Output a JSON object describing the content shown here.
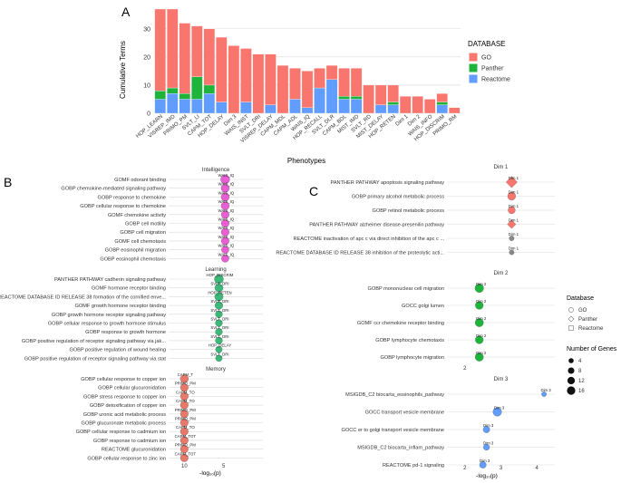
{
  "colors": {
    "GO": "#F8766D",
    "Panther": "#1EB43C",
    "Reactome": "#619CFF",
    "intel": "#E75FD3",
    "learn": "#3CB878",
    "mem": "#E8786A",
    "grid": "#d9d9d9",
    "axis": "#333333"
  },
  "panels": {
    "A": {
      "letter": "A",
      "ylabel": "Cumulative Terms",
      "xlabel": "Phenotypes",
      "legend": {
        "title": "DATABASE",
        "items": [
          "GO",
          "Panther",
          "Reactome"
        ]
      }
    },
    "B": {
      "letter": "B",
      "xlabel": "-log₁₀(p)"
    },
    "C": {
      "letter": "C",
      "xlabel": "-log₁₀(p)",
      "db_legend": {
        "title": "Database",
        "items": [
          "GO",
          "Panther",
          "Reactome"
        ]
      },
      "size_legend": {
        "title": "Number of Genes",
        "values": [
          "4",
          "8",
          "12",
          "16"
        ]
      }
    }
  },
  "chart_data": [
    {
      "type": "bar",
      "stacked": true,
      "title": "",
      "xlabel": "Phenotypes",
      "ylabel": "Cumulative Terms",
      "ylim": [
        0,
        37
      ],
      "yticks": [
        0,
        10,
        20,
        30
      ],
      "categories": [
        "HOP_LEARN",
        "VISREP_IMD",
        "PRIMO_PM",
        "SVLT_LI",
        "CAPM_TOT",
        "HOP_DELAY",
        "Dim 3",
        "WAIS_INST",
        "SVLT_DRI",
        "VISREP_DELAY",
        "CAPM_MDL",
        "CAPM_ADL",
        "WAIS_IQ",
        "HOP_RECALL",
        "SVLT_DLR",
        "CAPM_BDL",
        "MIST_IMD",
        "SVLT_RD",
        "MIST_DELAY",
        "HOP_RETEN",
        "Dim 1",
        "Dim 2",
        "WAIS_INFO",
        "HOP_DISCRIM",
        "PRIMO_RM"
      ],
      "series": [
        {
          "name": "GO",
          "values": [
            29,
            28,
            25,
            18,
            20,
            23,
            24,
            19,
            21,
            18,
            17,
            11,
            13,
            7,
            5,
            10,
            10,
            10,
            7,
            6,
            6,
            6,
            5,
            3,
            2
          ]
        },
        {
          "name": "Panther",
          "values": [
            3,
            2,
            2,
            8,
            3,
            0,
            0,
            0,
            0,
            0,
            0,
            0,
            0,
            0,
            0,
            1,
            1,
            0,
            0,
            1,
            0,
            0,
            0,
            1,
            0
          ]
        },
        {
          "name": "Reactome",
          "values": [
            5,
            7,
            5,
            5,
            7,
            4,
            0,
            4,
            0,
            3,
            0,
            5,
            2,
            9,
            12,
            5,
            5,
            0,
            3,
            3,
            0,
            0,
            0,
            3,
            0
          ]
        }
      ]
    },
    {
      "type": "scatter",
      "panel": "B",
      "xlabel": "-log10(p)",
      "xlim": [
        0,
        12
      ],
      "xticks": [
        5,
        10
      ],
      "groups": [
        {
          "name": "Intelligence",
          "color_key": "intel",
          "x": 4.8,
          "rows": [
            {
              "term": "GOMF odorant binding",
              "pheno": "WAIS_IQ",
              "size": 12
            },
            {
              "term": "GOBP chemokine-mediated signaling pathway",
              "pheno": "WAIS_IQ",
              "size": 9
            },
            {
              "term": "GOBP response to chemokine",
              "pheno": "WAIS_IQ",
              "size": 9
            },
            {
              "term": "GOBP cellular response to chemokine",
              "pheno": "WAIS_IQ",
              "size": 9
            },
            {
              "term": "GOMF chemokine activity",
              "pheno": "WAIS_IQ",
              "size": 8
            },
            {
              "term": "GOBP cell motility",
              "pheno": "WAIS_IQ",
              "size": 8
            },
            {
              "term": "GOBP cell migration",
              "pheno": "WAIS_IQ",
              "size": 8
            },
            {
              "term": "GOMF cell chemotaxis",
              "pheno": "WAIS_IQ",
              "size": 8
            },
            {
              "term": "GOBP eosinophil migration",
              "pheno": "WAIS_IQ",
              "size": 7
            },
            {
              "term": "GOBP eosinophil chemotaxis",
              "pheno": "WAIS_IQ",
              "size": 7
            }
          ]
        },
        {
          "name": "Learning",
          "color_key": "learn",
          "x": 5.6,
          "rows": [
            {
              "term": "PANTHER PATHWAY cadherin signaling pathway",
              "pheno": "HOP_DISCRIM",
              "size": 12
            },
            {
              "term": "GOMF hormone receptor binding",
              "pheno": "SVLT_DRI",
              "size": 9
            },
            {
              "term": "REACTOME DATABASE ID RELEASE 38 formation of the cornified enve...",
              "pheno": "HOP_RETEN",
              "size": 10
            },
            {
              "term": "GOMF growth hormone receptor binding",
              "pheno": "SVLT_DRI",
              "size": 8
            },
            {
              "term": "GOBP growth hormone receptor signaling pathway",
              "pheno": "SVLT_DRI",
              "size": 6
            },
            {
              "term": "GOBP cellular response to growth hormone stimulus",
              "pheno": "SVLT_DRI",
              "size": 6
            },
            {
              "term": "GOBP response to growth hormone",
              "pheno": "SVLT_DRI",
              "size": 6
            },
            {
              "term": "GOBP positive regulation of receptor signaling pathway via jak...",
              "pheno": "SVLT_DRI",
              "size": 6
            },
            {
              "term": "GOBP positive regulation of wound healing",
              "pheno": "HOP_DELAY",
              "size": 5
            },
            {
              "term": "GOBP positive regulation of receptor signaling pathway via stat",
              "pheno": "SVLT_DRI",
              "size": 5
            }
          ]
        },
        {
          "name": "Memory",
          "color_key": "mem",
          "x": 10.0,
          "rows": [
            {
              "term": "GOBP cellular response to copper ion",
              "pheno": "CAPM_T",
              "size": 9
            },
            {
              "term": "GOBP cellular glucuronidation",
              "pheno": "PRIMO_PM",
              "size": 8
            },
            {
              "term": "GOBP stress response to copper ion",
              "pheno": "CAPM_TO",
              "size": 8
            },
            {
              "term": "GOBP detoxification of copper ion",
              "pheno": "CAPM_TO",
              "size": 8
            },
            {
              "term": "GOBP uronic acid metabolic process",
              "pheno": "PRIMO_PM",
              "size": 8
            },
            {
              "term": "GOBP glucuronate metabolic process",
              "pheno": "PRIMO_PM",
              "size": 8
            },
            {
              "term": "GOBP cellular response to cadmium ion",
              "pheno": "CAPM_TO",
              "size": 8
            },
            {
              "term": "GOBP response to cadmium ion",
              "pheno": "CAPM_TOT",
              "size": 8
            },
            {
              "term": "REACTOME glucuronidation",
              "pheno": "PRIMO_PM",
              "size": 8
            },
            {
              "term": "GOBP cellular response to zinc ion",
              "pheno": "CAPM_TOT",
              "size": 8
            }
          ]
        }
      ]
    },
    {
      "type": "scatter",
      "panel": "C",
      "xlabel": "-log10(p)",
      "groups": [
        {
          "name": "Dim 1",
          "xlim": [
            0,
            6
          ],
          "xticks": [],
          "rows": [
            {
              "term": "PANTHER PATHWAY apoptosis signaling pathway",
              "db": "Panther",
              "x": 3.6,
              "size": 12
            },
            {
              "term": "GOBP primary alcohol metabolic process",
              "db": "GO",
              "x": 3.6,
              "size": 8
            },
            {
              "term": "GOBP retinol metabolic process",
              "db": "GO",
              "x": 3.6,
              "size": 6
            },
            {
              "term": "PANTHER PATHWAY alzheimer disease-presenilin pathway",
              "db": "Panther",
              "x": 3.6,
              "size": 6
            },
            {
              "term": "REACTOME inactivation of apc c via direct inhibition of the apc c ...",
              "db": "Reactome",
              "x": 3.6,
              "size": 2
            },
            {
              "term": "REACTOME DATABASE ID RELEASE 38 inhibition of the proteolytic acti...",
              "db": "Reactome",
              "x": 3.6,
              "size": 2
            }
          ]
        },
        {
          "name": "Dim 2",
          "xlim": [
            1.5,
            4.5
          ],
          "xticks": [
            "2"
          ],
          "rows": [
            {
              "term": "GOBP mononuclear cell migration",
              "db": "GO",
              "x": 2.4,
              "size": 10
            },
            {
              "term": "GOCC golgi lumen",
              "db": "GO",
              "x": 2.4,
              "size": 8
            },
            {
              "term": "GOMF ccr chemokine receptor binding",
              "db": "GO",
              "x": 2.4,
              "size": 9
            },
            {
              "term": "GOBP lymphocyte chemotaxis",
              "db": "GO",
              "x": 2.4,
              "size": 8
            },
            {
              "term": "GOBP lymphocyte migration",
              "db": "GO",
              "x": 2.4,
              "size": 9
            }
          ]
        },
        {
          "name": "Dim 3",
          "xlim": [
            1.5,
            4.5
          ],
          "xticks": [
            "2",
            "3",
            "4"
          ],
          "rows": [
            {
              "term": "MSIGDB_C2 biocarta_eosinophils_pathway",
              "db": "Reactome",
              "x": 4.2,
              "size": 2
            },
            {
              "term": "GOCC transport vesicle membrane",
              "db": "Reactome",
              "x": 2.9,
              "size": 10
            },
            {
              "term": "GOCC er to golgi transport vesicle membrane",
              "db": "Reactome",
              "x": 2.6,
              "size": 5
            },
            {
              "term": "MSIGDB_C2 biocarta_inflam_pathway",
              "db": "Reactome",
              "x": 2.6,
              "size": 4
            },
            {
              "term": "REACTOME pd-1 signaling",
              "db": "Reactome",
              "x": 2.5,
              "size": 5
            }
          ]
        }
      ]
    }
  ]
}
